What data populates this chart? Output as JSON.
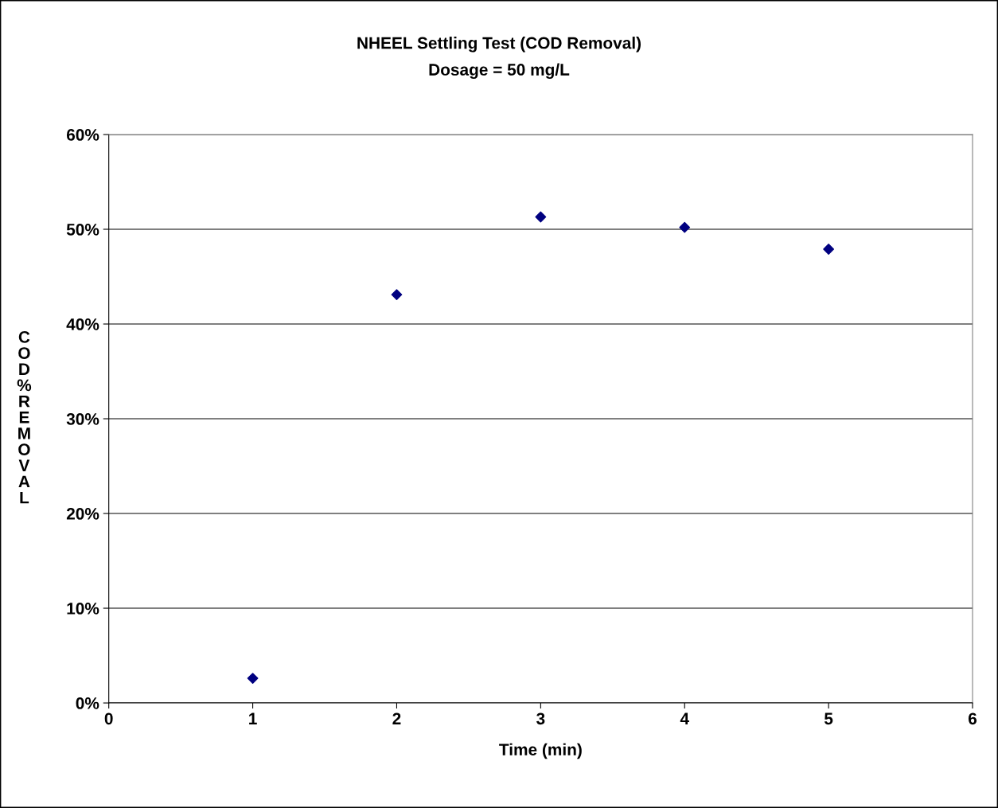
{
  "chart_data": {
    "type": "scatter",
    "title": "NHEEL Settling Test (COD Removal)",
    "subtitle": "Dosage = 50 mg/L",
    "xlabel": "Time (min)",
    "ylabel": "COD%REMOVAL",
    "x": [
      1,
      2,
      3,
      4,
      5
    ],
    "series": [
      {
        "color": "#000080",
        "values": [
          2.6,
          43.1,
          51.3,
          50.2,
          47.9
        ]
      }
    ],
    "xlim": [
      0,
      6
    ],
    "xticks": [
      0,
      1,
      2,
      3,
      4,
      5,
      6
    ],
    "ylim": [
      0,
      60
    ],
    "yticks": [
      {
        "value": 0,
        "label": "0%"
      },
      {
        "value": 10,
        "label": "10%"
      },
      {
        "value": 20,
        "label": "20%"
      },
      {
        "value": 30,
        "label": "30%"
      },
      {
        "value": 40,
        "label": "40%"
      },
      {
        "value": 50,
        "label": "50%"
      },
      {
        "value": 60,
        "label": "60%"
      }
    ],
    "grid": "y",
    "marker": "diamond",
    "legend": false
  }
}
